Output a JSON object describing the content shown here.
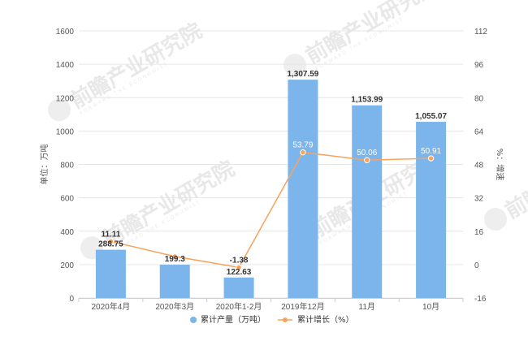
{
  "chart_data": {
    "type": "bar",
    "categories": [
      "2020年4月",
      "2020年3月",
      "2020年1-2月",
      "2019年12月",
      "11月",
      "10月"
    ],
    "series": [
      {
        "name": "累计产量（万吨）",
        "type": "bar",
        "axis": "left",
        "color": "#7cb5ec",
        "values": [
          288.75,
          199.3,
          122.63,
          1307.59,
          1153.99,
          1055.07
        ],
        "labels": [
          "288.75",
          "199.3",
          "122.63",
          "1,307.59",
          "1,153.99",
          "1,055.07"
        ]
      },
      {
        "name": "累计增长（%）",
        "type": "line",
        "axis": "right",
        "color": "#f7a35c",
        "values": [
          11.11,
          3.9,
          -1.38,
          53.79,
          50.06,
          50.91
        ],
        "labels": [
          "11.11",
          "",
          "-1.38",
          "53.79",
          "50.06",
          "50.91"
        ]
      }
    ],
    "y_left": {
      "label": "单位：万吨",
      "min": 0,
      "max": 1600,
      "ticks": [
        0,
        200,
        400,
        600,
        800,
        1000,
        1200,
        1400,
        1600
      ]
    },
    "y_right": {
      "label": "%：增速",
      "min": -16,
      "max": 112,
      "ticks": [
        -16,
        0,
        16,
        32,
        48,
        64,
        80,
        96,
        112
      ]
    },
    "grid": true,
    "legend": "bottom-center"
  },
  "watermark": {
    "text": "前瞻产业研究院",
    "sub": "FORWARD THE ECONOMIST"
  }
}
